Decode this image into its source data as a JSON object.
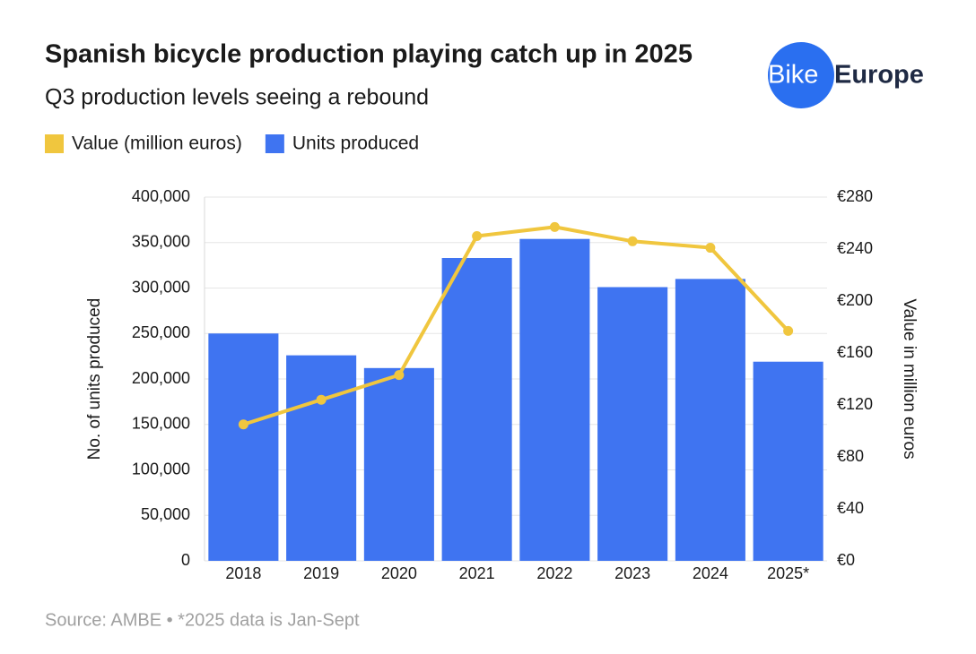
{
  "logo": [
    "Bike",
    "Europe"
  ],
  "chart_data": {
    "type": "bar",
    "title": "Spanish bicycle production playing catch up in 2025",
    "subtitle": "Q3 production levels seeing a rebound",
    "source": "Source: AMBE • *2025 data is Jan-Sept",
    "y_label": "No. of units produced",
    "y2_label": "Value in million euros",
    "categories": [
      "2018",
      "2019",
      "2020",
      "2021",
      "2022",
      "2023",
      "2024",
      "2025*"
    ],
    "series": [
      {
        "name": "Value (million euros)",
        "color": "#f0c63e",
        "type": "line",
        "axis": "y2",
        "values": [
          105,
          124,
          143,
          250,
          257,
          246,
          241,
          177
        ]
      },
      {
        "name": "Units produced",
        "color": "#3f74f1",
        "type": "bar",
        "axis": "y",
        "values": [
          250000,
          226000,
          212000,
          333000,
          354000,
          301000,
          310000,
          219000
        ]
      }
    ],
    "ylim": [
      0,
      400000
    ],
    "yticks": [
      0,
      {
        "value": 50000,
        "label": "50,000"
      },
      {
        "value": 100000,
        "label": "100,000"
      },
      {
        "value": 150000,
        "label": "150,000"
      },
      {
        "value": 200000,
        "label": "200,000"
      },
      {
        "value": 250000,
        "label": "250,000"
      },
      {
        "value": 300000,
        "label": "300,000"
      },
      {
        "value": 350000,
        "label": "350,000"
      },
      {
        "value": 400000,
        "label": "400,000"
      }
    ],
    "y2lim": [
      0,
      280
    ],
    "y2ticks": [
      {
        "value": 0,
        "label": "€0"
      },
      {
        "value": 40,
        "label": "€40"
      },
      {
        "value": 80,
        "label": "€80"
      },
      {
        "value": 120,
        "label": "€120"
      },
      {
        "value": 160,
        "label": "€160"
      },
      {
        "value": 200,
        "label": "€200"
      },
      {
        "value": 240,
        "label": "€240"
      },
      {
        "value": 280,
        "label": "€280"
      }
    ],
    "grid": true
  }
}
